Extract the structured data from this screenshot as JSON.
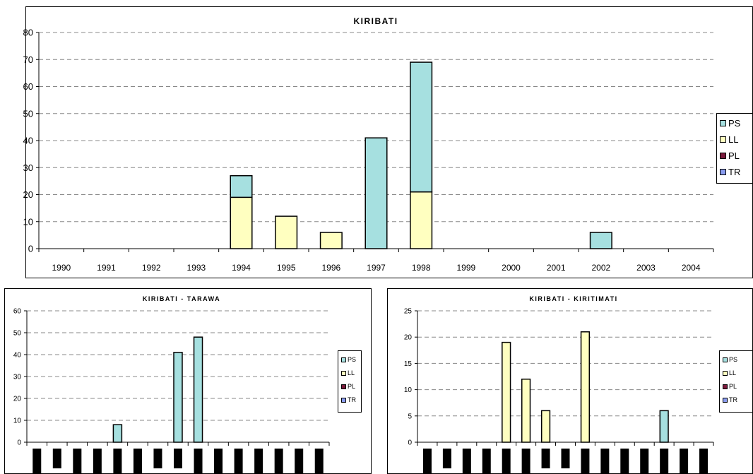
{
  "colors": {
    "PS": "#a6e0e0",
    "LL": "#ffffc0",
    "PL": "#7a1a3c",
    "TR": "#8a9cf0"
  },
  "legend": [
    "PS",
    "LL",
    "PL",
    "TR"
  ],
  "chart_data": [
    {
      "type": "bar",
      "stacked": true,
      "title": "KIRIBATI",
      "categories": [
        "1990",
        "1991",
        "1992",
        "1993",
        "1994",
        "1995",
        "1996",
        "1997",
        "1998",
        "1999",
        "2000",
        "2001",
        "2002",
        "2003",
        "2004"
      ],
      "series": [
        {
          "name": "LL",
          "values": [
            0,
            0,
            0,
            0,
            19,
            12,
            6,
            0,
            21,
            0,
            0,
            0,
            0,
            0,
            0
          ]
        },
        {
          "name": "PS",
          "values": [
            0,
            0,
            0,
            0,
            8,
            0,
            0,
            41,
            48,
            0,
            0,
            0,
            6,
            0,
            0
          ]
        },
        {
          "name": "PL",
          "values": [
            0,
            0,
            0,
            0,
            0,
            0,
            0,
            0,
            0,
            0,
            0,
            0,
            0,
            0,
            0
          ]
        },
        {
          "name": "TR",
          "values": [
            0,
            0,
            0,
            0,
            0,
            0,
            0,
            0,
            0,
            0,
            0,
            0,
            0,
            0,
            0
          ]
        }
      ],
      "ylim": [
        0,
        80
      ],
      "yticks": [
        0,
        10,
        20,
        30,
        40,
        50,
        60,
        70,
        80
      ],
      "grid": true,
      "legend_position": "right"
    },
    {
      "type": "bar",
      "stacked": true,
      "title": "KIRIBATI - TARAWA",
      "categories": [
        "",
        "",
        "",
        "",
        "",
        "",
        "",
        "",
        "",
        "",
        "",
        "",
        "",
        "",
        ""
      ],
      "series": [
        {
          "name": "LL",
          "values": [
            0,
            0,
            0,
            0,
            0,
            0,
            0,
            0,
            0,
            0,
            0,
            0,
            0,
            0,
            0
          ]
        },
        {
          "name": "PS",
          "values": [
            0,
            0,
            0,
            0,
            8,
            0,
            0,
            41,
            48,
            0,
            0,
            0,
            0,
            0,
            0
          ]
        },
        {
          "name": "PL",
          "values": [
            0,
            0,
            0,
            0,
            0,
            0,
            0,
            0,
            0,
            0,
            0,
            0,
            0,
            0,
            0
          ]
        },
        {
          "name": "TR",
          "values": [
            0,
            0,
            0,
            0,
            0,
            0,
            0,
            0,
            0,
            0,
            0,
            0,
            0,
            0,
            0
          ]
        }
      ],
      "ylim": [
        0,
        60
      ],
      "yticks": [
        0,
        10,
        20,
        30,
        40,
        50,
        60
      ],
      "grid": true,
      "legend_position": "right"
    },
    {
      "type": "bar",
      "stacked": true,
      "title": "KIRIBATI - KIRITIMATI",
      "categories": [
        "",
        "",
        "",
        "",
        "",
        "",
        "",
        "",
        "",
        "",
        "",
        "",
        "",
        "",
        ""
      ],
      "series": [
        {
          "name": "LL",
          "values": [
            0,
            0,
            0,
            0,
            19,
            12,
            6,
            0,
            21,
            0,
            0,
            0,
            0,
            0,
            0
          ]
        },
        {
          "name": "PS",
          "values": [
            0,
            0,
            0,
            0,
            0,
            0,
            0,
            0,
            0,
            0,
            0,
            0,
            6,
            0,
            0
          ]
        },
        {
          "name": "PL",
          "values": [
            0,
            0,
            0,
            0,
            0,
            0,
            0,
            0,
            0,
            0,
            0,
            0,
            0,
            0,
            0
          ]
        },
        {
          "name": "TR",
          "values": [
            0,
            0,
            0,
            0,
            0,
            0,
            0,
            0,
            0,
            0,
            0,
            0,
            0,
            0,
            0
          ]
        }
      ],
      "ylim": [
        0,
        25
      ],
      "yticks": [
        0,
        5,
        10,
        15,
        20,
        25
      ],
      "grid": true,
      "legend_position": "right"
    }
  ]
}
